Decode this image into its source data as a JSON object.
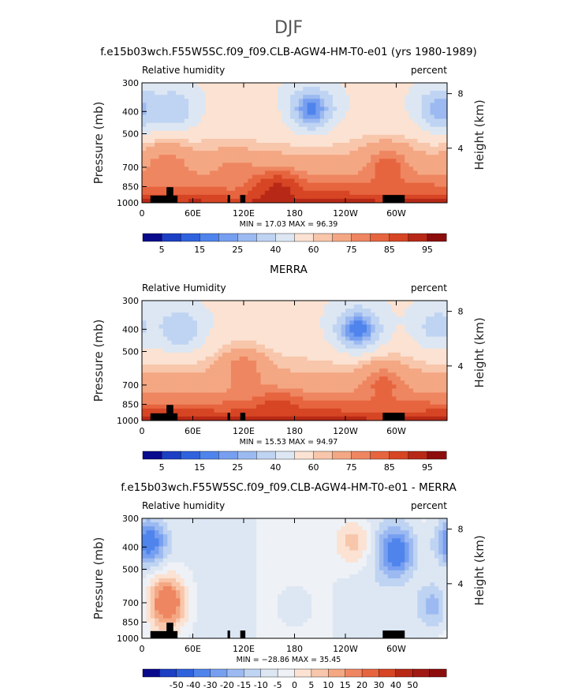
{
  "figure": {
    "suptitle": "DJF"
  },
  "colorbars": {
    "absolute": {
      "colors": [
        "#0a0a8c",
        "#1c3fc4",
        "#2f62dd",
        "#4f84ec",
        "#779ff0",
        "#9cbaf1",
        "#bfd3f2",
        "#dde7f3",
        "#fbe2d2",
        "#f8c6ab",
        "#f4a783",
        "#ee8661",
        "#e6653f",
        "#d64524",
        "#b72916",
        "#8c0d0c"
      ],
      "labels": [
        "5",
        "15",
        "25",
        "40",
        "60",
        "75",
        "85",
        "95"
      ],
      "label_boundaries": [
        1,
        3,
        5,
        7,
        9,
        11,
        13,
        15
      ]
    },
    "difference": {
      "colors": [
        "#0a0a8c",
        "#1c3fc4",
        "#2f62dd",
        "#4f84ec",
        "#779ff0",
        "#9cbaf1",
        "#bfd3f2",
        "#dde7f3",
        "#eef1f6",
        "#fbe2d2",
        "#f8c6ab",
        "#f4a783",
        "#ee8661",
        "#e6653f",
        "#d64524",
        "#b72916",
        "#a01912",
        "#8c0d0c"
      ],
      "labels": [
        "-50",
        "-40",
        "-30",
        "-20",
        "-15",
        "-10",
        "-5",
        "0",
        "5",
        "10",
        "15",
        "20",
        "30",
        "40",
        "50"
      ],
      "label_boundaries": [
        2,
        3,
        4,
        5,
        6,
        7,
        8,
        9,
        10,
        11,
        12,
        13,
        14,
        15,
        16
      ]
    }
  },
  "panels": [
    {
      "title": "f.e15b03wch.F55W5SC.f09_f09.CLB-AGW4-HM-T0-e01 (yrs 1980-1989)",
      "left_label": "Relative humidity",
      "right_label": "percent",
      "y_axis_label": "Pressure (mb)",
      "right_axis_label": "Height (km)",
      "min_text": "MIN =   17.03   MAX =   96.39",
      "colorbar": "absolute"
    },
    {
      "title": "MERRA",
      "left_label": "Relative Humidity",
      "right_label": "percent",
      "y_axis_label": "Pressure (mb)",
      "right_axis_label": "Height (km)",
      "min_text": "MIN =   15.53   MAX =   94.97",
      "colorbar": "absolute"
    },
    {
      "title": "f.e15b03wch.F55W5SC.f09_f09.CLB-AGW4-HM-T0-e01 - MERRA",
      "left_label": "Relative humidity",
      "right_label": "percent",
      "y_axis_label": "Pressure (mb)",
      "right_axis_label": "Height (km)",
      "min_text": "MIN = −28.86   MAX =   35.45",
      "colorbar": "difference"
    }
  ],
  "chart_data": [
    {
      "type": "heatmap",
      "title": "f.e15b03wch.F55W5SC.f09_f09.CLB-AGW4-HM-T0-e01 (yrs 1980-1989)",
      "variable": "Relative humidity",
      "units": "percent",
      "xlabel": "",
      "ylabel": "Pressure (mb)",
      "y2label": "Height (km)",
      "x_ticks": [
        "0",
        "60E",
        "120E",
        "180",
        "120W",
        "60W"
      ],
      "y_ticks": [
        "300",
        "400",
        "500",
        "700",
        "850",
        "1000"
      ],
      "y2_ticks": [
        "8",
        "4"
      ],
      "x_range_deg": [
        0,
        360
      ],
      "y_range_mb": [
        300,
        1000
      ],
      "y_scale": "log",
      "min": 17.03,
      "max": 96.39,
      "levels": [
        5,
        10,
        15,
        20,
        25,
        30,
        40,
        50,
        60,
        65,
        75,
        80,
        85,
        90,
        95
      ],
      "anomalies": [
        {
          "lon": 200,
          "p": 390,
          "value": 18
        },
        {
          "lon": 38,
          "p": 390,
          "value": 32
        },
        {
          "lon": 352,
          "p": 390,
          "value": 25
        },
        {
          "lon": 130,
          "p": 450,
          "value": 58
        },
        {
          "lon": 290,
          "p": 700,
          "value": 83
        },
        {
          "lon": 30,
          "p": 700,
          "value": 80
        },
        {
          "lon": 110,
          "p": 750,
          "value": 78
        },
        {
          "lon": 160,
          "p": 900,
          "value": 92
        }
      ]
    },
    {
      "type": "heatmap",
      "title": "MERRA",
      "variable": "Relative Humidity",
      "units": "percent",
      "xlabel": "",
      "ylabel": "Pressure (mb)",
      "y2label": "Height (km)",
      "x_ticks": [
        "0",
        "60E",
        "120E",
        "180",
        "120W",
        "60W"
      ],
      "y_ticks": [
        "300",
        "400",
        "500",
        "700",
        "850",
        "1000"
      ],
      "y2_ticks": [
        "8",
        "4"
      ],
      "x_range_deg": [
        0,
        360
      ],
      "y_range_mb": [
        300,
        1000
      ],
      "y_scale": "log",
      "min": 15.53,
      "max": 94.97,
      "levels": [
        5,
        10,
        15,
        20,
        25,
        30,
        40,
        50,
        60,
        65,
        75,
        80,
        85,
        90,
        95
      ],
      "anomalies": [
        {
          "lon": 255,
          "p": 400,
          "value": 16
        },
        {
          "lon": 45,
          "p": 400,
          "value": 30
        },
        {
          "lon": 348,
          "p": 390,
          "value": 35
        },
        {
          "lon": 120,
          "p": 600,
          "value": 80
        },
        {
          "lon": 285,
          "p": 700,
          "value": 82
        },
        {
          "lon": 160,
          "p": 950,
          "value": 90
        }
      ]
    },
    {
      "type": "heatmap",
      "title": "f.e15b03wch.F55W5SC.f09_f09.CLB-AGW4-HM-T0-e01 - MERRA",
      "variable": "Relative humidity",
      "units": "percent",
      "xlabel": "",
      "ylabel": "Pressure (mb)",
      "y2label": "Height (km)",
      "x_ticks": [
        "0",
        "60E",
        "120E",
        "180",
        "120W",
        "60W"
      ],
      "y_ticks": [
        "300",
        "400",
        "500",
        "700",
        "850",
        "1000"
      ],
      "y2_ticks": [
        "8",
        "4"
      ],
      "x_range_deg": [
        0,
        360
      ],
      "y_range_mb": [
        300,
        1000
      ],
      "y_scale": "log",
      "min": -28.86,
      "max": 35.45,
      "levels": [
        -50,
        -40,
        -30,
        -20,
        -15,
        -10,
        -5,
        0,
        5,
        10,
        15,
        20,
        30,
        40,
        50
      ],
      "anomalies": [
        {
          "lon": 8,
          "p": 380,
          "value": -28
        },
        {
          "lon": 300,
          "p": 420,
          "value": -25
        },
        {
          "lon": 30,
          "p": 700,
          "value": 28
        },
        {
          "lon": 250,
          "p": 380,
          "value": 14
        },
        {
          "lon": 180,
          "p": 720,
          "value": -6
        },
        {
          "lon": 345,
          "p": 720,
          "value": -15
        }
      ]
    }
  ]
}
